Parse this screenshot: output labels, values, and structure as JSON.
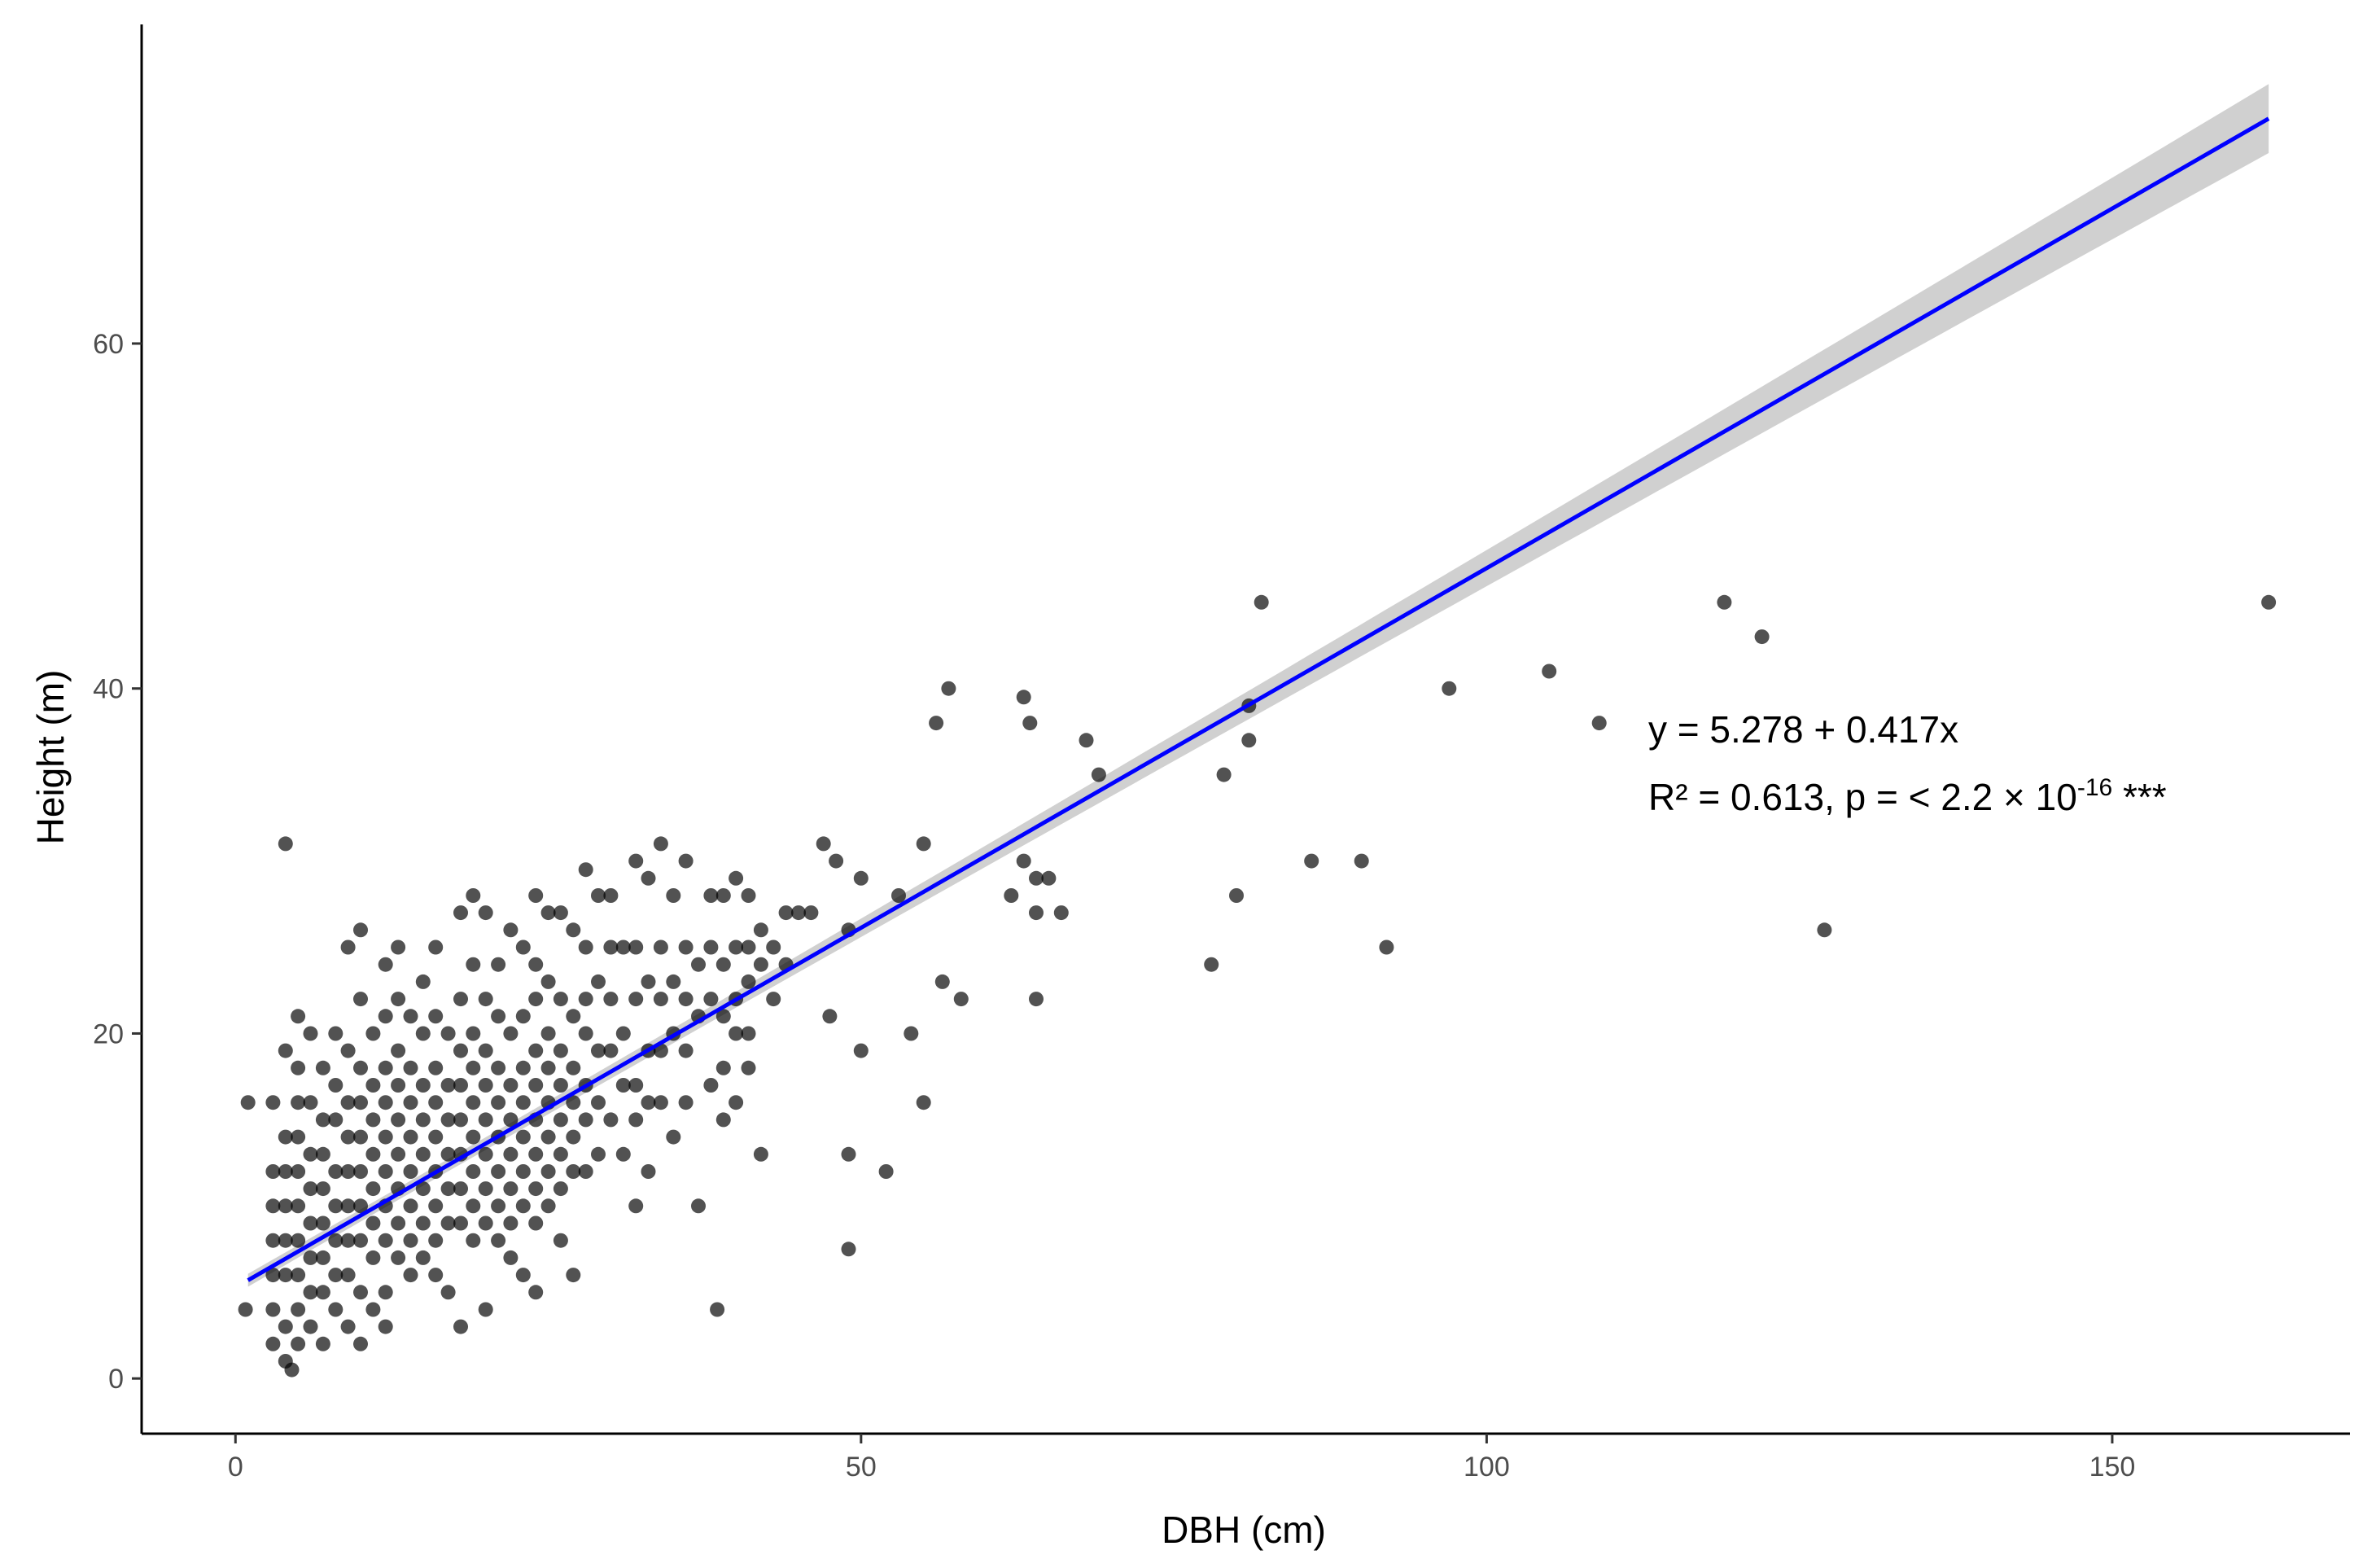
{
  "chart_data": {
    "type": "scatter",
    "title": "",
    "xlabel": "DBH (cm)",
    "ylabel": "Height (m)",
    "xlim": [
      -7.5,
      169
    ],
    "ylim": [
      -3.2,
      78.5
    ],
    "x_ticks": [
      0,
      50,
      100,
      150
    ],
    "y_ticks": [
      0,
      20,
      40,
      60
    ],
    "x_tick_labels": [
      "0",
      "50",
      "100",
      "150"
    ],
    "y_tick_labels": [
      "0",
      "20",
      "40",
      "60"
    ],
    "grid": false,
    "legend": "none",
    "annotation": {
      "equation": "y = 5.278 + 0.417x",
      "stats_prefix": "R² = 0.613, p = < 2.2 × 10",
      "stats_exponent": "-16",
      "stats_suffix": " ***"
    },
    "fit": {
      "intercept": 5.278,
      "slope": 0.417,
      "x_range": [
        1,
        162.5
      ],
      "ci_halfwidth_min": 0.35,
      "ci_halfwidth_max": 2.0,
      "ci_center_x": 12,
      "color": "#0000ff",
      "ci_color": "#c8c8c8"
    },
    "points_color": "#000000",
    "points": [
      [
        4,
        31
      ],
      [
        1,
        16
      ],
      [
        0.8,
        4
      ],
      [
        3,
        16
      ],
      [
        3,
        12
      ],
      [
        3,
        10
      ],
      [
        3,
        8
      ],
      [
        3,
        6
      ],
      [
        3,
        4
      ],
      [
        3,
        2
      ],
      [
        4,
        14
      ],
      [
        4,
        12
      ],
      [
        4,
        10
      ],
      [
        4,
        8
      ],
      [
        4,
        6
      ],
      [
        4,
        3
      ],
      [
        4,
        1
      ],
      [
        4.5,
        0.5
      ],
      [
        4,
        19
      ],
      [
        5,
        18
      ],
      [
        5,
        16
      ],
      [
        5,
        14
      ],
      [
        5,
        12
      ],
      [
        5,
        10
      ],
      [
        5,
        8
      ],
      [
        5,
        6
      ],
      [
        5,
        4
      ],
      [
        5,
        2
      ],
      [
        5,
        21
      ],
      [
        6,
        20
      ],
      [
        6,
        16
      ],
      [
        6,
        13
      ],
      [
        6,
        11
      ],
      [
        6,
        9
      ],
      [
        6,
        7
      ],
      [
        6,
        5
      ],
      [
        6,
        3
      ],
      [
        7,
        18
      ],
      [
        7,
        15
      ],
      [
        7,
        13
      ],
      [
        7,
        11
      ],
      [
        7,
        9
      ],
      [
        7,
        7
      ],
      [
        7,
        5
      ],
      [
        7,
        2
      ],
      [
        8,
        20
      ],
      [
        8,
        17
      ],
      [
        8,
        15
      ],
      [
        8,
        12
      ],
      [
        8,
        10
      ],
      [
        8,
        8
      ],
      [
        8,
        6
      ],
      [
        8,
        4
      ],
      [
        9,
        25
      ],
      [
        9,
        19
      ],
      [
        9,
        16
      ],
      [
        9,
        14
      ],
      [
        9,
        12
      ],
      [
        9,
        10
      ],
      [
        9,
        8
      ],
      [
        9,
        6
      ],
      [
        9,
        3
      ],
      [
        10,
        26
      ],
      [
        10,
        22
      ],
      [
        10,
        18
      ],
      [
        10,
        16
      ],
      [
        10,
        14
      ],
      [
        10,
        12
      ],
      [
        10,
        10
      ],
      [
        10,
        8
      ],
      [
        10,
        5
      ],
      [
        10,
        2
      ],
      [
        11,
        20
      ],
      [
        11,
        17
      ],
      [
        11,
        15
      ],
      [
        11,
        13
      ],
      [
        11,
        11
      ],
      [
        11,
        9
      ],
      [
        11,
        7
      ],
      [
        11,
        4
      ],
      [
        12,
        24
      ],
      [
        12,
        21
      ],
      [
        12,
        18
      ],
      [
        12,
        16
      ],
      [
        12,
        14
      ],
      [
        12,
        12
      ],
      [
        12,
        10
      ],
      [
        12,
        8
      ],
      [
        12,
        5
      ],
      [
        12,
        3
      ],
      [
        13,
        25
      ],
      [
        13,
        22
      ],
      [
        13,
        19
      ],
      [
        13,
        17
      ],
      [
        13,
        15
      ],
      [
        13,
        13
      ],
      [
        13,
        11
      ],
      [
        13,
        9
      ],
      [
        13,
        7
      ],
      [
        14,
        21
      ],
      [
        14,
        18
      ],
      [
        14,
        16
      ],
      [
        14,
        14
      ],
      [
        14,
        12
      ],
      [
        14,
        10
      ],
      [
        14,
        8
      ],
      [
        14,
        6
      ],
      [
        15,
        23
      ],
      [
        15,
        20
      ],
      [
        15,
        17
      ],
      [
        15,
        15
      ],
      [
        15,
        13
      ],
      [
        15,
        11
      ],
      [
        15,
        9
      ],
      [
        15,
        7
      ],
      [
        16,
        25
      ],
      [
        16,
        21
      ],
      [
        16,
        18
      ],
      [
        16,
        16
      ],
      [
        16,
        14
      ],
      [
        16,
        12
      ],
      [
        16,
        10
      ],
      [
        16,
        8
      ],
      [
        16,
        6
      ],
      [
        17,
        20
      ],
      [
        17,
        17
      ],
      [
        17,
        15
      ],
      [
        17,
        13
      ],
      [
        17,
        11
      ],
      [
        17,
        9
      ],
      [
        17,
        5
      ],
      [
        18,
        27
      ],
      [
        18,
        22
      ],
      [
        18,
        19
      ],
      [
        18,
        17
      ],
      [
        18,
        15
      ],
      [
        18,
        13
      ],
      [
        18,
        11
      ],
      [
        18,
        9
      ],
      [
        18,
        3
      ],
      [
        19,
        28
      ],
      [
        19,
        24
      ],
      [
        19,
        20
      ],
      [
        19,
        18
      ],
      [
        19,
        16
      ],
      [
        19,
        14
      ],
      [
        19,
        12
      ],
      [
        19,
        10
      ],
      [
        19,
        8
      ],
      [
        20,
        27
      ],
      [
        20,
        22
      ],
      [
        20,
        19
      ],
      [
        20,
        17
      ],
      [
        20,
        15
      ],
      [
        20,
        13
      ],
      [
        20,
        11
      ],
      [
        20,
        9
      ],
      [
        20,
        4
      ],
      [
        21,
        24
      ],
      [
        21,
        21
      ],
      [
        21,
        18
      ],
      [
        21,
        16
      ],
      [
        21,
        14
      ],
      [
        21,
        12
      ],
      [
        21,
        10
      ],
      [
        21,
        8
      ],
      [
        22,
        26
      ],
      [
        22,
        20
      ],
      [
        22,
        17
      ],
      [
        22,
        15
      ],
      [
        22,
        13
      ],
      [
        22,
        11
      ],
      [
        22,
        9
      ],
      [
        22,
        7
      ],
      [
        23,
        25
      ],
      [
        23,
        21
      ],
      [
        23,
        18
      ],
      [
        23,
        16
      ],
      [
        23,
        14
      ],
      [
        23,
        12
      ],
      [
        23,
        10
      ],
      [
        23,
        6
      ],
      [
        24,
        28
      ],
      [
        24,
        24
      ],
      [
        24,
        22
      ],
      [
        24,
        19
      ],
      [
        24,
        17
      ],
      [
        24,
        15
      ],
      [
        24,
        13
      ],
      [
        24,
        11
      ],
      [
        24,
        9
      ],
      [
        24,
        5
      ],
      [
        25,
        27
      ],
      [
        25,
        23
      ],
      [
        25,
        20
      ],
      [
        25,
        18
      ],
      [
        25,
        16
      ],
      [
        25,
        14
      ],
      [
        25,
        12
      ],
      [
        25,
        10
      ],
      [
        26,
        27
      ],
      [
        26,
        22
      ],
      [
        26,
        19
      ],
      [
        26,
        17
      ],
      [
        26,
        15
      ],
      [
        26,
        13
      ],
      [
        26,
        11
      ],
      [
        26,
        8
      ],
      [
        27,
        26
      ],
      [
        27,
        21
      ],
      [
        27,
        18
      ],
      [
        27,
        16
      ],
      [
        27,
        14
      ],
      [
        27,
        12
      ],
      [
        27,
        6
      ],
      [
        28,
        29.5
      ],
      [
        28,
        25
      ],
      [
        28,
        22
      ],
      [
        28,
        20
      ],
      [
        28,
        17
      ],
      [
        28,
        15
      ],
      [
        28,
        12
      ],
      [
        29,
        28
      ],
      [
        29,
        23
      ],
      [
        29,
        19
      ],
      [
        29,
        16
      ],
      [
        29,
        13
      ],
      [
        30,
        28
      ],
      [
        30,
        25
      ],
      [
        30,
        22
      ],
      [
        30,
        19
      ],
      [
        30,
        15
      ],
      [
        31,
        25
      ],
      [
        31,
        20
      ],
      [
        31,
        17
      ],
      [
        31,
        13
      ],
      [
        32,
        30
      ],
      [
        32,
        25
      ],
      [
        32,
        22
      ],
      [
        32,
        17
      ],
      [
        32,
        15
      ],
      [
        32,
        10
      ],
      [
        33,
        29
      ],
      [
        33,
        23
      ],
      [
        33,
        19
      ],
      [
        33,
        16
      ],
      [
        33,
        12
      ],
      [
        34,
        31
      ],
      [
        34,
        25
      ],
      [
        34,
        22
      ],
      [
        34,
        19
      ],
      [
        34,
        16
      ],
      [
        35,
        28
      ],
      [
        35,
        23
      ],
      [
        35,
        20
      ],
      [
        35,
        14
      ],
      [
        36,
        30
      ],
      [
        36,
        25
      ],
      [
        36,
        22
      ],
      [
        36,
        19
      ],
      [
        36,
        16
      ],
      [
        37,
        24
      ],
      [
        37,
        21
      ],
      [
        37,
        10
      ],
      [
        38,
        28
      ],
      [
        38,
        25
      ],
      [
        38,
        22
      ],
      [
        38,
        17
      ],
      [
        38.5,
        4
      ],
      [
        39,
        28
      ],
      [
        39,
        24
      ],
      [
        39,
        21
      ],
      [
        39,
        18
      ],
      [
        39,
        15
      ],
      [
        40,
        29
      ],
      [
        40,
        25
      ],
      [
        40,
        22
      ],
      [
        40,
        20
      ],
      [
        40,
        16
      ],
      [
        41,
        28
      ],
      [
        41,
        25
      ],
      [
        41,
        23
      ],
      [
        41,
        20
      ],
      [
        41,
        18
      ],
      [
        42,
        26
      ],
      [
        42,
        24
      ],
      [
        42,
        13
      ],
      [
        43,
        25
      ],
      [
        43,
        22
      ],
      [
        44,
        27
      ],
      [
        44,
        24
      ],
      [
        45,
        27
      ],
      [
        46,
        27
      ],
      [
        47,
        31
      ],
      [
        47.5,
        21
      ],
      [
        48,
        30
      ],
      [
        49,
        26
      ],
      [
        49,
        13
      ],
      [
        49,
        7.5
      ],
      [
        50,
        29
      ],
      [
        50,
        19
      ],
      [
        52,
        12
      ],
      [
        53,
        28
      ],
      [
        54,
        20
      ],
      [
        55,
        31
      ],
      [
        55,
        16
      ],
      [
        56,
        38
      ],
      [
        56.5,
        23
      ],
      [
        57,
        40
      ],
      [
        58,
        22
      ],
      [
        62,
        28
      ],
      [
        63,
        39.5
      ],
      [
        63,
        30
      ],
      [
        63.5,
        38
      ],
      [
        64,
        29
      ],
      [
        64,
        27
      ],
      [
        64,
        22
      ],
      [
        65,
        29
      ],
      [
        66,
        27
      ],
      [
        68,
        37
      ],
      [
        69,
        35
      ],
      [
        78,
        24
      ],
      [
        79,
        35
      ],
      [
        80,
        28
      ],
      [
        81,
        39
      ],
      [
        81,
        37
      ],
      [
        82,
        45
      ],
      [
        86,
        30
      ],
      [
        90,
        30
      ],
      [
        92,
        25
      ],
      [
        97,
        40
      ],
      [
        105,
        41
      ],
      [
        109,
        38
      ],
      [
        119,
        45
      ],
      [
        122,
        43
      ],
      [
        127,
        26
      ],
      [
        162.5,
        45
      ]
    ]
  }
}
